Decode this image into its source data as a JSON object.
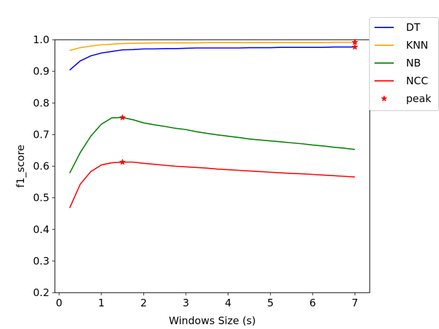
{
  "chart_data": {
    "type": "line",
    "title": "",
    "xlabel": "Windows Size (s)",
    "ylabel": "f1_score",
    "xlim": [
      -0.1,
      7.35
    ],
    "ylim": [
      0.2,
      1.0
    ],
    "xticks": [
      0,
      1,
      2,
      3,
      4,
      5,
      6,
      7
    ],
    "yticks": [
      0.2,
      0.3,
      0.4,
      0.5,
      0.6,
      0.7,
      0.8,
      0.9,
      1.0
    ],
    "grid": false,
    "legend_position": "outside-top-right",
    "x": [
      0.25,
      0.5,
      0.75,
      1.0,
      1.25,
      1.5,
      1.75,
      2.0,
      2.25,
      2.5,
      2.75,
      3.0,
      3.25,
      3.5,
      3.75,
      4.0,
      4.25,
      4.5,
      4.75,
      5.0,
      5.25,
      5.5,
      5.75,
      6.0,
      6.25,
      6.5,
      6.75,
      7.0
    ],
    "series": [
      {
        "name": "DT",
        "color": "#0000ff",
        "values": [
          0.904,
          0.933,
          0.949,
          0.958,
          0.963,
          0.968,
          0.969,
          0.971,
          0.971,
          0.972,
          0.972,
          0.973,
          0.974,
          0.974,
          0.974,
          0.974,
          0.974,
          0.975,
          0.975,
          0.975,
          0.976,
          0.976,
          0.976,
          0.976,
          0.976,
          0.977,
          0.977,
          0.977
        ]
      },
      {
        "name": "KNN",
        "color": "#ffa500",
        "values": [
          0.966,
          0.975,
          0.98,
          0.984,
          0.986,
          0.988,
          0.989,
          0.989,
          0.99,
          0.99,
          0.99,
          0.99,
          0.99,
          0.991,
          0.991,
          0.991,
          0.991,
          0.991,
          0.991,
          0.991,
          0.991,
          0.991,
          0.991,
          0.991,
          0.991,
          0.992,
          0.992,
          0.992
        ]
      },
      {
        "name": "NB",
        "color": "#008000",
        "values": [
          0.578,
          0.643,
          0.695,
          0.733,
          0.753,
          0.754,
          0.747,
          0.737,
          0.731,
          0.726,
          0.72,
          0.716,
          0.709,
          0.704,
          0.699,
          0.695,
          0.691,
          0.686,
          0.683,
          0.68,
          0.677,
          0.674,
          0.671,
          0.667,
          0.664,
          0.66,
          0.657,
          0.653
        ]
      },
      {
        "name": "NCC",
        "color": "#ff0000",
        "values": [
          0.468,
          0.543,
          0.583,
          0.604,
          0.611,
          0.613,
          0.613,
          0.609,
          0.606,
          0.603,
          0.6,
          0.598,
          0.596,
          0.594,
          0.591,
          0.589,
          0.587,
          0.585,
          0.583,
          0.581,
          0.579,
          0.577,
          0.576,
          0.574,
          0.572,
          0.57,
          0.568,
          0.566
        ]
      }
    ],
    "peaks": {
      "name": "peak",
      "color": "#ff0000",
      "points": [
        {
          "x": 7.0,
          "y": 0.977
        },
        {
          "x": 7.0,
          "y": 0.992
        },
        {
          "x": 1.5,
          "y": 0.754
        },
        {
          "x": 1.5,
          "y": 0.613
        }
      ]
    }
  }
}
